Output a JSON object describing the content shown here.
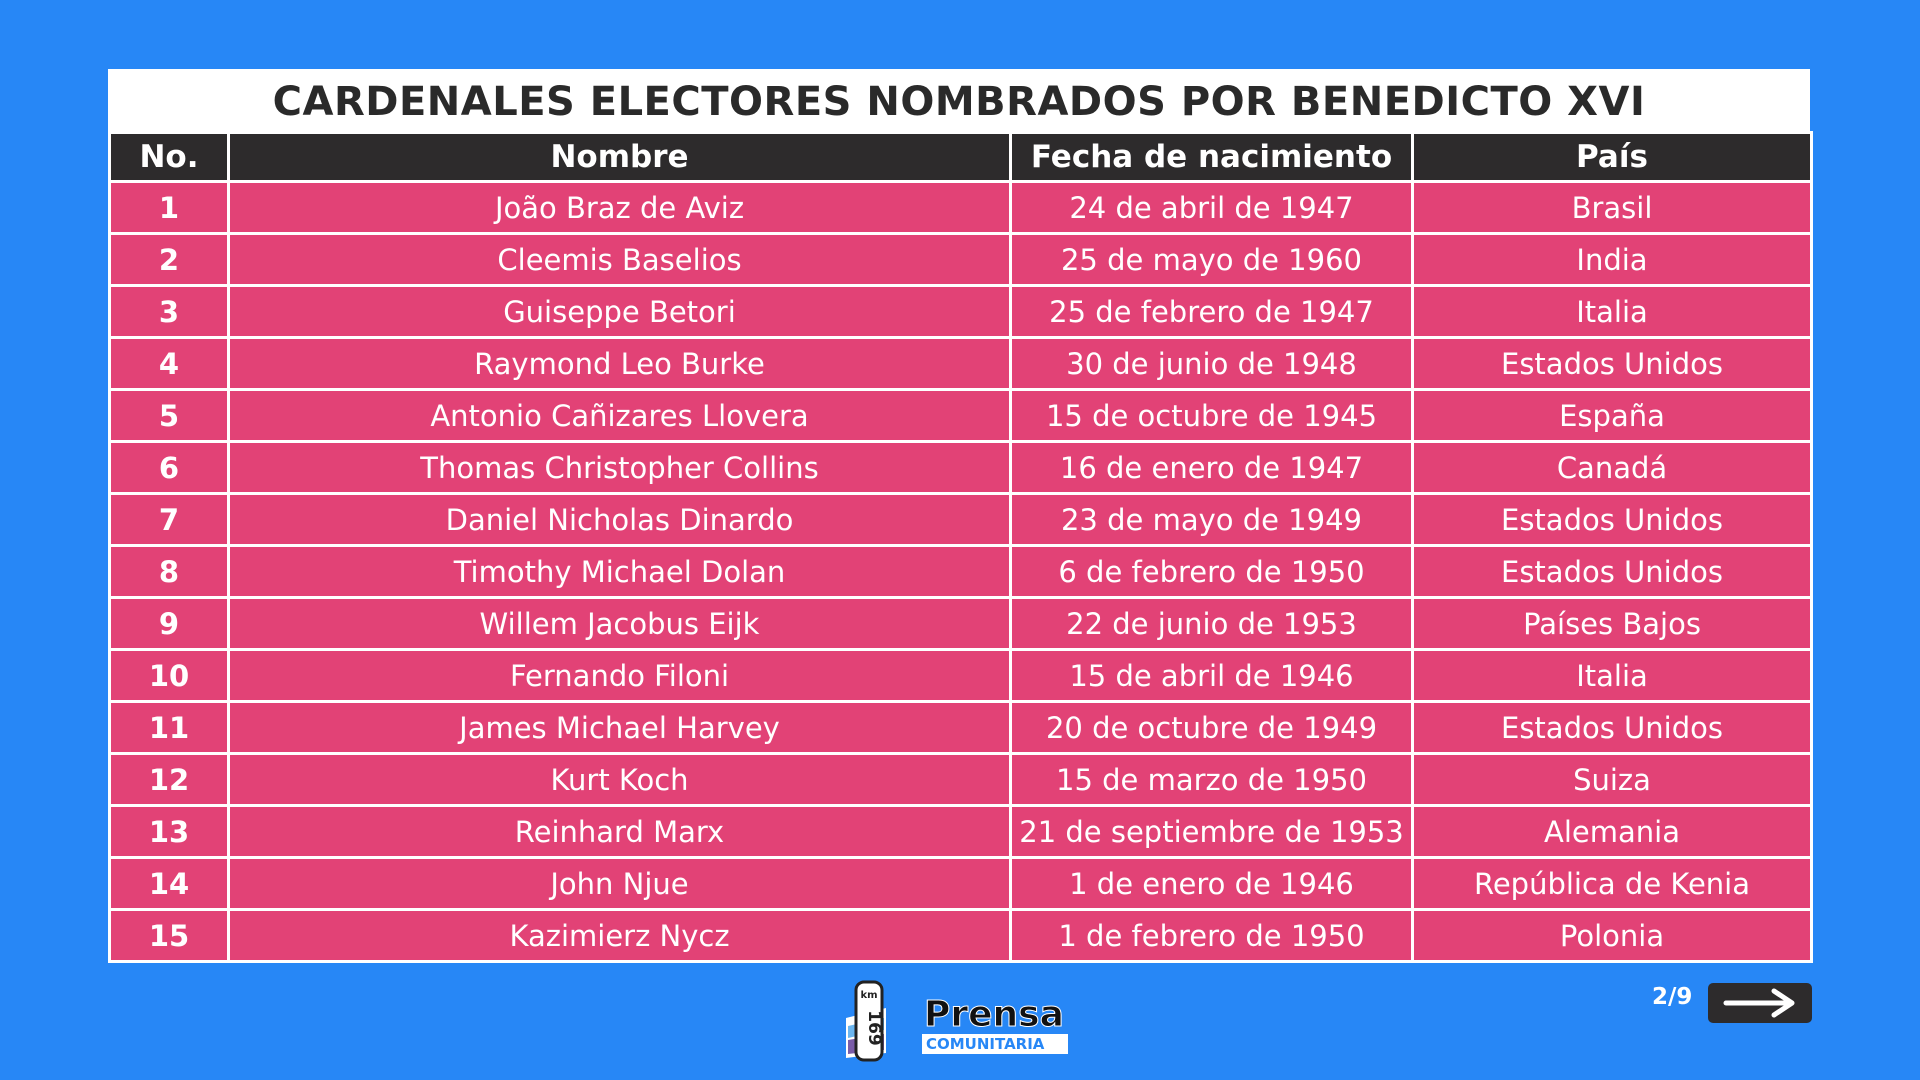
{
  "title": "CARDENALES ELECTORES NOMBRADOS POR BENEDICTO XVI",
  "table": {
    "header": [
      "No.",
      "Nombre",
      "Fecha de nacimiento",
      "País"
    ],
    "rows": [
      [
        1,
        "João Braz de Aviz",
        "24 de abril de 1947",
        "Brasil"
      ],
      [
        2,
        "Cleemis Baselios",
        "25 de mayo de 1960",
        "India"
      ],
      [
        3,
        "Guiseppe Betori",
        "25 de febrero de 1947",
        "Italia"
      ],
      [
        4,
        "Raymond Leo Burke",
        "30 de junio de 1948",
        "Estados Unidos"
      ],
      [
        5,
        "Antonio Cañizares Llovera",
        "15 de octubre de 1945",
        "España"
      ],
      [
        6,
        "Thomas Christopher Collins",
        "16 de enero de 1947",
        "Canadá"
      ],
      [
        7,
        "Daniel Nicholas Dinardo",
        "23 de mayo de 1949",
        "Estados Unidos"
      ],
      [
        8,
        "Timothy Michael Dolan",
        "6 de febrero de 1950",
        "Estados Unidos"
      ],
      [
        9,
        "Willem Jacobus Eijk",
        "22 de junio de 1953",
        "Países Bajos"
      ],
      [
        10,
        "Fernando Filoni",
        "15 de abril de 1946",
        "Italia"
      ],
      [
        11,
        "James Michael Harvey",
        "20 de octubre de 1949",
        "Estados Unidos"
      ],
      [
        12,
        "Kurt Koch",
        "15 de marzo de 1950",
        "Suiza"
      ],
      [
        13,
        "Reinhard Marx",
        "21 de septiembre de 1953",
        "Alemania"
      ],
      [
        14,
        "John Njue",
        "1 de enero de 1946",
        "República de Kenia"
      ],
      [
        15,
        "Kazimierz Nycz",
        "1 de febrero de 1950",
        "Polonia"
      ]
    ]
  },
  "logo": {
    "badge_top": "km",
    "badge_number": "169",
    "name": "Prensa",
    "subtitle": "COMUNITARIA"
  },
  "pager": {
    "page": "2/9"
  }
}
